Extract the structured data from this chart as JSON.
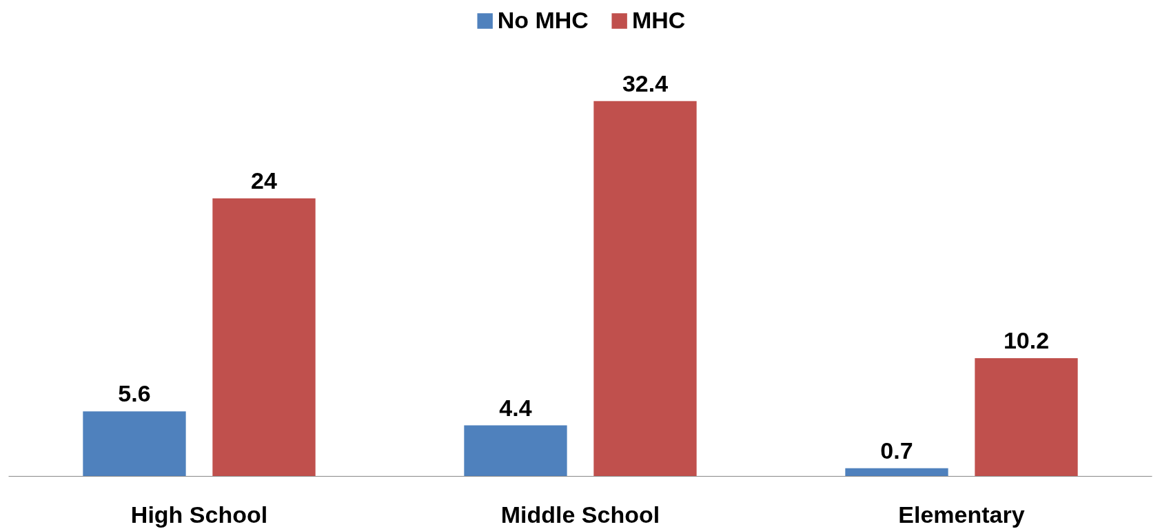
{
  "chart_data": {
    "type": "bar",
    "categories": [
      "High School",
      "Middle School",
      "Elementary"
    ],
    "series": [
      {
        "name": "No MHC",
        "color": "#4f81bd",
        "values": [
          5.6,
          4.4,
          0.7
        ]
      },
      {
        "name": "MHC",
        "color": "#c0504d",
        "values": [
          24,
          32.4,
          10.2
        ]
      }
    ],
    "data_labels": true,
    "legend": "top",
    "grid": false
  }
}
